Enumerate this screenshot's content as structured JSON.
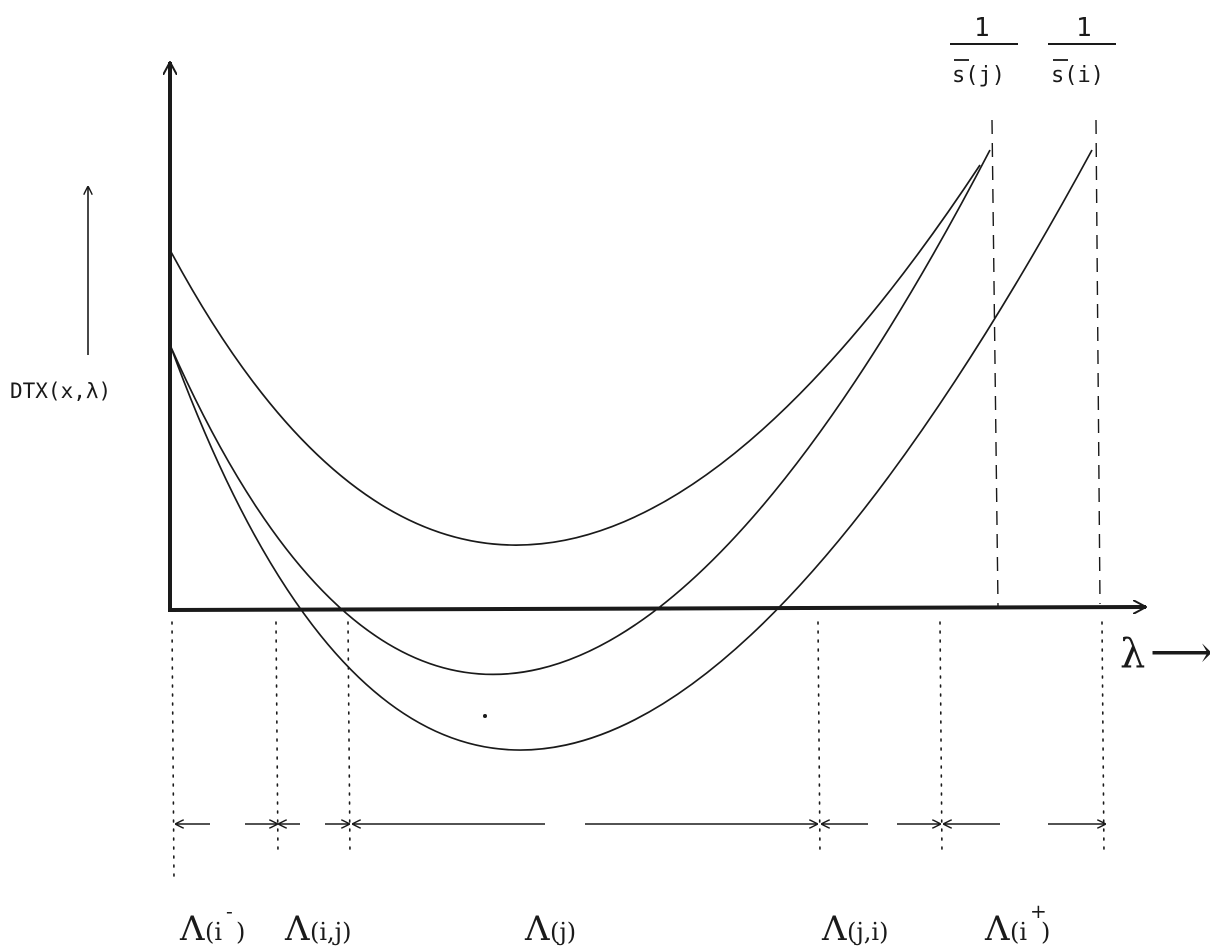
{
  "axes": {
    "y_label": "DTX(x,λ)",
    "x_label": "λ",
    "x_arrow": "⟶"
  },
  "asymptotes": [
    {
      "numerator": "1",
      "denominator": "s(j)"
    },
    {
      "numerator": "1",
      "denominator": "s(i)"
    }
  ],
  "regions": [
    {
      "symbol": "Λ",
      "arg": "(i",
      "sup": "-",
      "close": ")"
    },
    {
      "symbol": "Λ",
      "arg": "(i,j)",
      "sup": "",
      "close": ""
    },
    {
      "symbol": "Λ",
      "arg": "(j)",
      "sup": "",
      "close": ""
    },
    {
      "symbol": "Λ",
      "arg": "(j,i)",
      "sup": "",
      "close": ""
    },
    {
      "symbol": "Λ",
      "arg": "(i",
      "sup": "+",
      "close": ")"
    }
  ],
  "colors": {
    "ink": "#1a1a1a",
    "background": "#ffffff"
  }
}
